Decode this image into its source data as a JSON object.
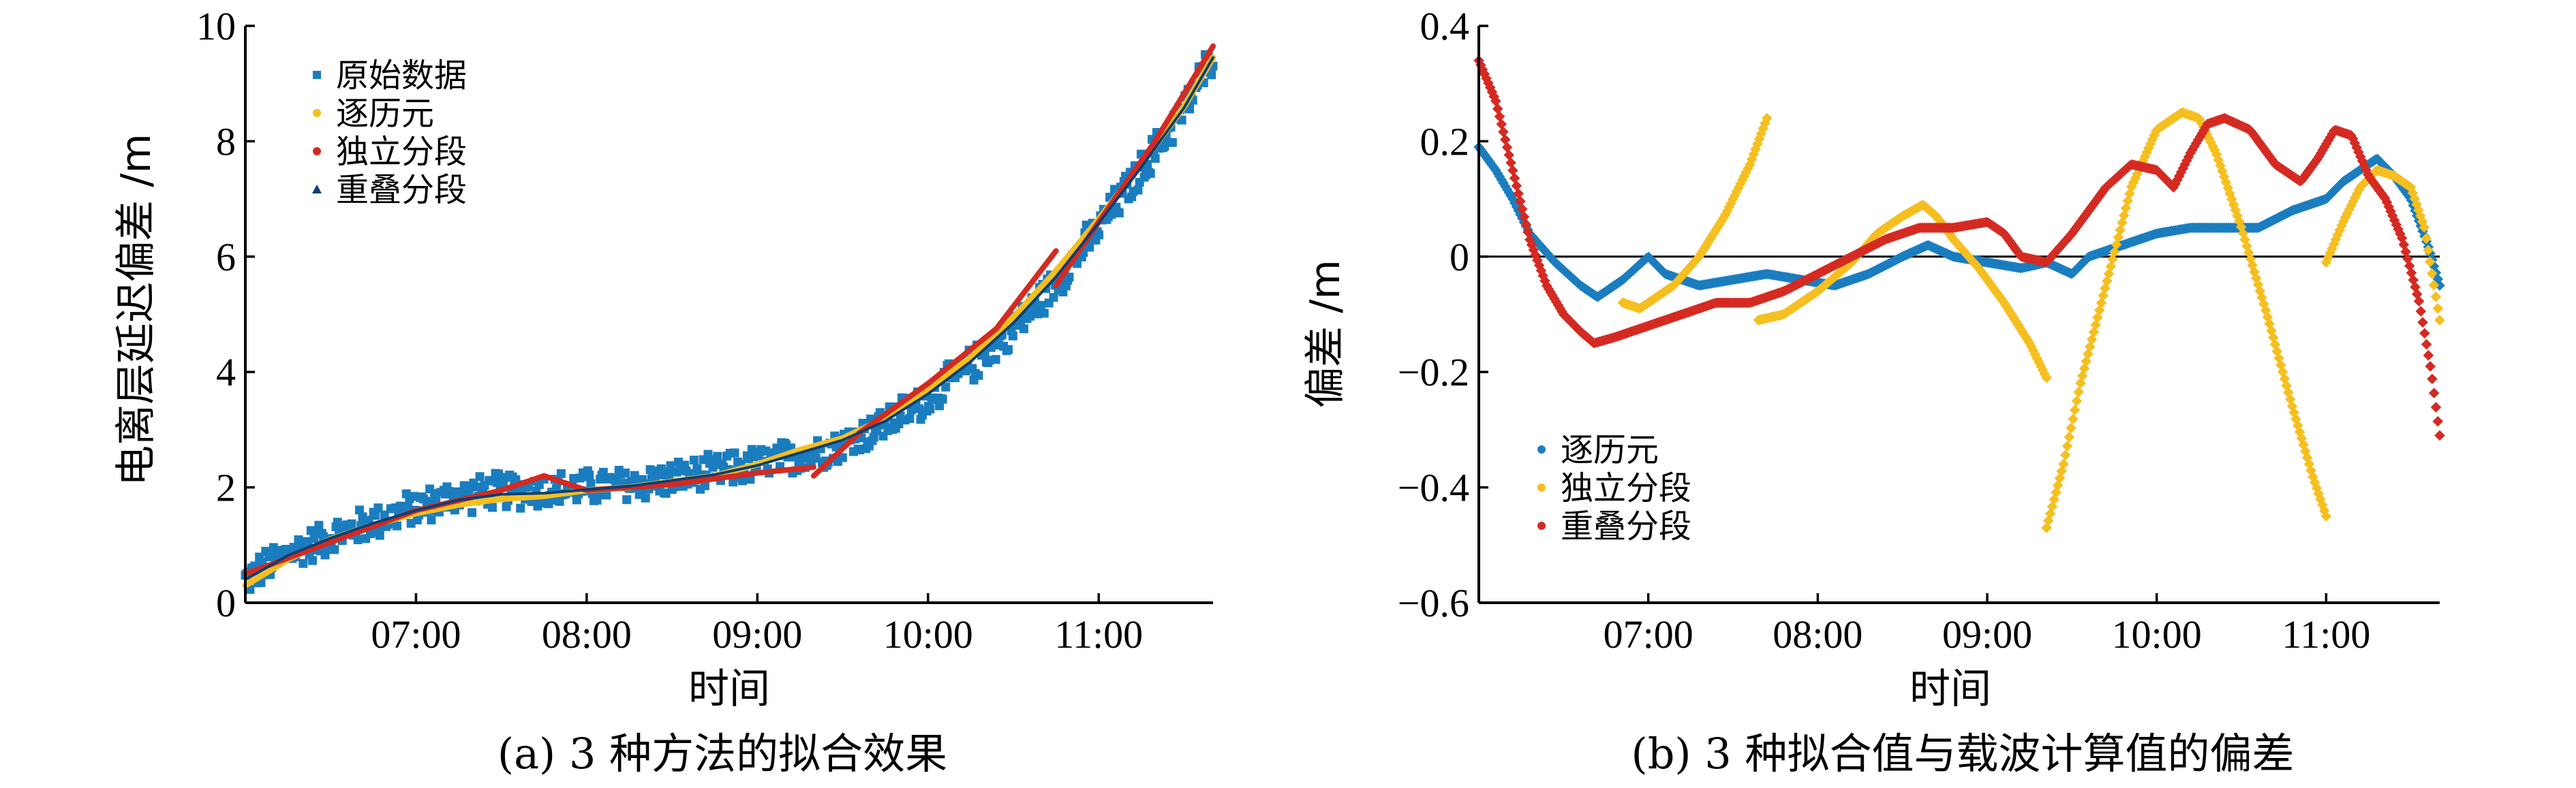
{
  "colors": {
    "raw": "#1a7dbf",
    "epoch": "#f5bf20",
    "independent": "#d42a22",
    "overlap": "#0b3f73",
    "dev_epoch": "#1a7dbf",
    "dev_independent": "#f5bf20",
    "dev_overlap": "#d42a22"
  },
  "chart_data": [
    {
      "id": "a",
      "type": "scatter",
      "caption": "(a) 3 种方法的拟合效果",
      "xlabel": "时间",
      "ylabel": "电离层延迟偏差 /m",
      "xlim": [
        6.0,
        11.67
      ],
      "ylim": [
        0,
        10
      ],
      "xticks": [
        7,
        8,
        9,
        10,
        11
      ],
      "xtick_labels": [
        "07:00",
        "08:00",
        "09:00",
        "10:00",
        "11:00"
      ],
      "yticks": [
        0,
        2,
        4,
        6,
        8,
        10
      ],
      "ytick_labels": [
        "0",
        "2",
        "4",
        "6",
        "8",
        "10"
      ],
      "legend": {
        "position": "top-left",
        "entries": [
          "原始数据",
          "逐历元",
          "独立分段",
          "重叠分段"
        ]
      },
      "series": [
        {
          "name": "原始数据",
          "marker": "square",
          "x": [
            6.0,
            6.25,
            6.5,
            6.75,
            7.0,
            7.25,
            7.5,
            7.75,
            8.0,
            8.25,
            8.5,
            8.75,
            9.0,
            9.25,
            9.5,
            9.75,
            10.0,
            10.25,
            10.5,
            10.75,
            11.0,
            11.25,
            11.5,
            11.67
          ],
          "y": [
            0.4,
            0.85,
            1.15,
            1.4,
            1.65,
            1.85,
            1.95,
            1.95,
            2.0,
            2.05,
            2.15,
            2.25,
            2.4,
            2.55,
            2.75,
            3.1,
            3.55,
            4.1,
            4.75,
            5.55,
            6.5,
            7.5,
            8.55,
            9.5
          ],
          "spread": 0.35
        },
        {
          "name": "逐历元",
          "x": [
            6.0,
            6.25,
            6.5,
            6.75,
            7.0,
            7.25,
            7.5,
            7.75,
            8.0,
            8.25,
            8.5,
            8.75,
            9.0,
            9.25,
            9.5,
            9.75,
            10.0,
            10.25,
            10.5,
            10.75,
            11.0,
            11.25,
            11.5,
            11.67
          ],
          "y": [
            0.3,
            0.75,
            1.1,
            1.35,
            1.55,
            1.7,
            1.8,
            1.85,
            1.95,
            2.0,
            2.1,
            2.2,
            2.4,
            2.65,
            2.85,
            3.2,
            3.7,
            4.25,
            4.95,
            5.75,
            6.65,
            7.6,
            8.6,
            9.45
          ]
        },
        {
          "name": "独立分段",
          "x": [
            6.0,
            6.5,
            7.0,
            7.5,
            7.75,
            8.0,
            8.5,
            9.0,
            9.33,
            9.33,
            9.6,
            10.0,
            10.4,
            10.75,
            10.75,
            11.0,
            11.33,
            11.67
          ],
          "y": [
            0.5,
            1.05,
            1.6,
            1.95,
            2.2,
            1.95,
            2.05,
            2.25,
            2.35,
            2.2,
            2.95,
            3.8,
            4.75,
            6.1,
            5.5,
            6.6,
            8.0,
            9.65
          ]
        },
        {
          "name": "重叠分段",
          "x": [
            6.0,
            6.25,
            6.5,
            6.75,
            7.0,
            7.25,
            7.5,
            7.75,
            8.0,
            8.25,
            8.5,
            8.75,
            9.0,
            9.25,
            9.5,
            9.75,
            10.0,
            10.25,
            10.5,
            10.75,
            11.0,
            11.25,
            11.5,
            11.67
          ],
          "y": [
            0.4,
            0.82,
            1.12,
            1.38,
            1.6,
            1.78,
            1.88,
            1.9,
            1.96,
            2.02,
            2.12,
            2.22,
            2.38,
            2.6,
            2.82,
            3.15,
            3.62,
            4.18,
            4.85,
            5.65,
            6.58,
            7.55,
            8.58,
            9.45
          ]
        }
      ]
    },
    {
      "id": "b",
      "type": "scatter",
      "caption": "(b) 3 种拟合值与载波计算值的偏差",
      "xlabel": "时间",
      "ylabel": "偏差 /m",
      "xlim": [
        6.0,
        11.67
      ],
      "ylim": [
        -0.6,
        0.4
      ],
      "xticks": [
        7,
        8,
        9,
        10,
        11
      ],
      "xtick_labels": [
        "07:00",
        "08:00",
        "09:00",
        "10:00",
        "11:00"
      ],
      "yticks": [
        -0.6,
        -0.4,
        -0.2,
        0,
        0.2,
        0.4
      ],
      "ytick_labels": [
        "−0.6",
        "−0.4",
        "−0.2",
        "0",
        "0.2",
        "0.4"
      ],
      "zero_line": true,
      "legend": {
        "position": "bottom-left",
        "entries": [
          "逐历元",
          "独立分段",
          "重叠分段"
        ]
      },
      "series": [
        {
          "name": "逐历元",
          "segments": [
            {
              "x": [
                6.0,
                6.1,
                6.2,
                6.3,
                6.45,
                6.6,
                6.7,
                6.85,
                7.0,
                7.1,
                7.3,
                7.5,
                7.7,
                7.9,
                8.1,
                8.3,
                8.5,
                8.65,
                8.8,
                9.0,
                9.2,
                9.35,
                9.5,
                9.6,
                9.8,
                10.0,
                10.2,
                10.4,
                10.6,
                10.8,
                11.0,
                11.1,
                11.2,
                11.3,
                11.4,
                11.5,
                11.6,
                11.67
              ],
              "y": [
                0.19,
                0.15,
                0.1,
                0.04,
                -0.01,
                -0.05,
                -0.07,
                -0.04,
                0.0,
                -0.03,
                -0.05,
                -0.04,
                -0.03,
                -0.04,
                -0.05,
                -0.03,
                0.0,
                0.02,
                0.0,
                -0.01,
                -0.02,
                -0.01,
                -0.03,
                0.0,
                0.02,
                0.04,
                0.05,
                0.05,
                0.05,
                0.08,
                0.1,
                0.13,
                0.15,
                0.17,
                0.14,
                0.1,
                0.02,
                -0.05
              ]
            }
          ]
        },
        {
          "name": "独立分段",
          "segments": [
            {
              "x": [
                6.85,
                6.95,
                7.05,
                7.15,
                7.3,
                7.45,
                7.6,
                7.7
              ],
              "y": [
                -0.08,
                -0.09,
                -0.07,
                -0.05,
                0.0,
                0.07,
                0.16,
                0.24
              ]
            },
            {
              "x": [
                7.65,
                7.8,
                8.0,
                8.2,
                8.35,
                8.5,
                8.62,
                8.7,
                8.8,
                8.95,
                9.1,
                9.25,
                9.35
              ],
              "y": [
                -0.11,
                -0.1,
                -0.06,
                -0.01,
                0.04,
                0.07,
                0.09,
                0.07,
                0.03,
                -0.02,
                -0.08,
                -0.15,
                -0.21
              ]
            },
            {
              "x": [
                9.35,
                9.45,
                9.55,
                9.7,
                9.85,
                10.0,
                10.15,
                10.25,
                10.35,
                10.5,
                10.65,
                10.8,
                10.92,
                11.0
              ],
              "y": [
                -0.47,
                -0.36,
                -0.22,
                -0.05,
                0.12,
                0.22,
                0.25,
                0.24,
                0.18,
                0.05,
                -0.1,
                -0.26,
                -0.38,
                -0.45
              ]
            },
            {
              "x": [
                11.0,
                11.1,
                11.2,
                11.3,
                11.4,
                11.5,
                11.58,
                11.67
              ],
              "y": [
                -0.01,
                0.06,
                0.12,
                0.15,
                0.14,
                0.12,
                0.05,
                -0.11
              ]
            }
          ]
        },
        {
          "name": "重叠分段",
          "segments": [
            {
              "x": [
                6.0,
                6.1,
                6.2,
                6.3,
                6.4,
                6.5,
                6.6,
                6.68,
                6.8,
                7.0,
                7.2,
                7.4,
                7.6,
                7.8,
                8.0,
                8.2,
                8.4,
                8.6,
                8.8,
                9.0,
                9.1,
                9.2,
                9.35,
                9.5,
                9.7,
                9.85,
                10.0,
                10.1,
                10.2,
                10.3,
                10.4,
                10.55,
                10.7,
                10.85,
                10.95,
                11.05,
                11.15,
                11.25,
                11.35,
                11.45,
                11.55,
                11.62,
                11.67
              ],
              "y": [
                0.34,
                0.27,
                0.15,
                0.03,
                -0.05,
                -0.1,
                -0.13,
                -0.15,
                -0.14,
                -0.12,
                -0.1,
                -0.08,
                -0.08,
                -0.06,
                -0.03,
                0.0,
                0.03,
                0.05,
                0.05,
                0.06,
                0.04,
                0.0,
                -0.01,
                0.04,
                0.12,
                0.16,
                0.15,
                0.12,
                0.18,
                0.23,
                0.24,
                0.22,
                0.16,
                0.13,
                0.17,
                0.22,
                0.21,
                0.14,
                0.1,
                0.03,
                -0.08,
                -0.2,
                -0.31
              ]
            }
          ]
        }
      ]
    }
  ]
}
